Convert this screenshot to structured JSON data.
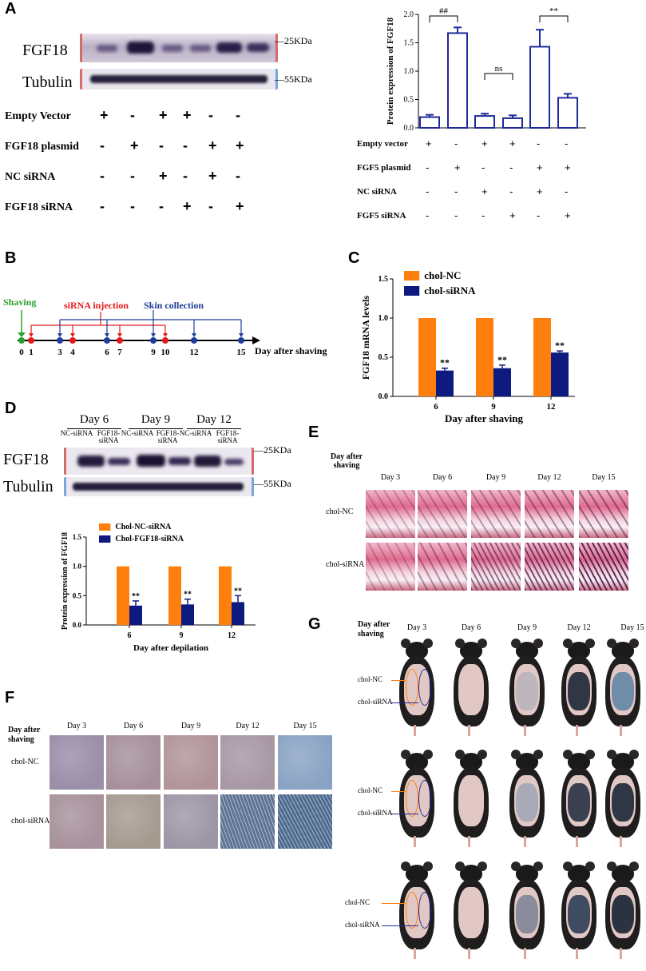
{
  "panels": {
    "A": "A",
    "B": "B",
    "C": "C",
    "D": "D",
    "E": "E",
    "F": "F",
    "G": "G"
  },
  "panelA": {
    "blot_labels": [
      "FGF18",
      "Tubulin"
    ],
    "mw": [
      "—25KDa",
      "—55KDa"
    ],
    "rows": [
      {
        "label": "Empty Vector",
        "marks": [
          "+",
          "-",
          "+",
          "+",
          "-",
          "-"
        ]
      },
      {
        "label": "FGF18 plasmid",
        "marks": [
          "-",
          "+",
          "-",
          "-",
          "+",
          "+"
        ]
      },
      {
        "label": "NC siRNA",
        "marks": [
          "-",
          "-",
          "+",
          "-",
          "+",
          "-"
        ]
      },
      {
        "label": "FGF18 siRNA",
        "marks": [
          "-",
          "-",
          "-",
          "+",
          "-",
          "+"
        ]
      }
    ],
    "chart_rows": [
      {
        "label": "Empty vector",
        "marks": [
          "+",
          "-",
          "+",
          "+",
          "-",
          "-"
        ]
      },
      {
        "label": "FGF5 plasmid",
        "marks": [
          "-",
          "+",
          "-",
          "-",
          "+",
          "+"
        ]
      },
      {
        "label": "NC siRNA",
        "marks": [
          "-",
          "-",
          "+",
          "-",
          "+",
          "-"
        ]
      },
      {
        "label": "FGF5 siRNA",
        "marks": [
          "-",
          "-",
          "-",
          "+",
          "-",
          "+"
        ]
      }
    ],
    "sig": [
      "##",
      "ns",
      "**"
    ]
  },
  "panelB": {
    "shaving": "Shaving",
    "injection": "siRNA injection",
    "collection": "Skin collection",
    "axis_label": "Day after shaving",
    "days": [
      "0",
      "1",
      "3",
      "4",
      "6",
      "7",
      "9",
      "10",
      "12",
      "15"
    ],
    "colors": {
      "shave": "#2ca02c",
      "inject": "#e31a1c",
      "collect": "#1f3c9a"
    }
  },
  "panelD": {
    "days": [
      "Day 6",
      "Day 9",
      "Day 12"
    ],
    "lanes": [
      "NC-siRNA",
      "FGF18-siRNA",
      "NC-siRNA",
      "FGF18-siRNA",
      "NC-siRNA",
      "FGF18-siRNA"
    ],
    "blot_labels": [
      "FGF18",
      "Tubulin"
    ],
    "mw": [
      "—25KDa",
      "—55KDa"
    ]
  },
  "panelE": {
    "header": "Day after shaving",
    "days": [
      "Day 3",
      "Day 6",
      "Day 9",
      "Day 12",
      "Day 15"
    ],
    "rows": [
      "chol-NC",
      "chol-siRNA"
    ]
  },
  "panelF": {
    "header": "Day after shaving",
    "days": [
      "Day 3",
      "Day 6",
      "Day 9",
      "Day 12",
      "Day 15"
    ],
    "rows": [
      "chol-NC",
      "chol-siRNA"
    ]
  },
  "panelG": {
    "header": "Day after shaving",
    "days": [
      "Day 3",
      "Day 6",
      "Day 9",
      "Day 12",
      "Day 15"
    ],
    "labels": [
      "chol-NC",
      "chol-siRNA"
    ]
  },
  "chart_data": [
    {
      "id": "A",
      "type": "bar",
      "ylabel": "Protein expression of FGF18",
      "ylim": [
        0,
        2.0
      ],
      "yticks": [
        0.0,
        0.5,
        1.0,
        1.5,
        2.0
      ],
      "values": [
        0.19,
        1.67,
        0.21,
        0.17,
        1.43,
        0.53
      ],
      "errors": [
        0.04,
        0.1,
        0.04,
        0.05,
        0.3,
        0.07
      ],
      "color": "#1f2a9a",
      "fill": "#ffffff",
      "annotations": [
        {
          "from": 0,
          "to": 1,
          "text": "##"
        },
        {
          "from": 2,
          "to": 3,
          "text": "ns"
        },
        {
          "from": 4,
          "to": 5,
          "text": "**"
        }
      ]
    },
    {
      "id": "C",
      "type": "bar",
      "ylabel": "FGF18 mRNA levels",
      "xlabel": "Day after shaving",
      "categories": [
        "6",
        "9",
        "12"
      ],
      "ylim": [
        0,
        1.5
      ],
      "yticks": [
        0.0,
        0.5,
        1.0,
        1.5
      ],
      "series": [
        {
          "name": "chol-NC",
          "values": [
            1,
            1,
            1
          ],
          "errors": [
            0,
            0,
            0
          ],
          "color": "#ff7f0e"
        },
        {
          "name": "chol-siRNA",
          "values": [
            0.33,
            0.36,
            0.56
          ],
          "errors": [
            0.03,
            0.04,
            0.02
          ],
          "color": "#0d1a80"
        }
      ],
      "stars": "**",
      "legend": "top-left"
    },
    {
      "id": "D",
      "type": "bar",
      "ylabel": "Protein expression of FGF18",
      "xlabel": "Day after depilation",
      "categories": [
        "6",
        "9",
        "12"
      ],
      "ylim": [
        0,
        1.5
      ],
      "yticks": [
        0.0,
        0.5,
        1.0,
        1.5
      ],
      "series": [
        {
          "name": "Chol-NC-siRNA",
          "values": [
            1,
            1,
            1
          ],
          "errors": [
            0,
            0,
            0
          ],
          "color": "#ff7f0e"
        },
        {
          "name": "Chol-FGF18-siRNA",
          "values": [
            0.33,
            0.35,
            0.39
          ],
          "errors": [
            0.08,
            0.09,
            0.11
          ],
          "color": "#0d1a80"
        }
      ],
      "stars": "**",
      "legend": "top-left"
    }
  ]
}
